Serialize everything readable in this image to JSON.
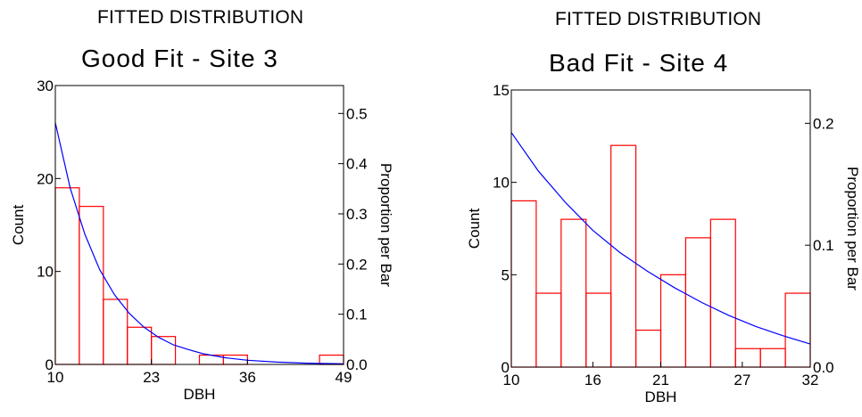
{
  "chart_data": [
    {
      "type": "bar",
      "subtitle": "FITTED DISTRIBUTION",
      "title": "Good Fit - Site 3",
      "xlabel": "DBH",
      "ylabel": "Count",
      "y2label": "Proportion per Bar",
      "xlim": [
        10,
        49
      ],
      "ylim": [
        0,
        30
      ],
      "y2lim": [
        0,
        0.5556
      ],
      "x_ticks": [
        "10",
        "23",
        "36",
        "49"
      ],
      "y_ticks": [
        "0",
        "10",
        "20",
        "30"
      ],
      "y2_ticks": [
        "0.0",
        "0.1",
        "0.2",
        "0.3",
        "0.4",
        "0.5"
      ],
      "bin_edges": [
        10,
        13.25,
        16.5,
        19.75,
        23,
        26.25,
        29.5,
        32.75,
        36,
        39.25,
        42.5,
        45.75,
        49
      ],
      "values": [
        19,
        17,
        7,
        4,
        3,
        0,
        1,
        1,
        0,
        0,
        0,
        1
      ],
      "fitted_curve": {
        "x": [
          10,
          12,
          14,
          16,
          18,
          20,
          22,
          24,
          26,
          28,
          30,
          33,
          36,
          40,
          44,
          49
        ],
        "y": [
          26.0,
          19.0,
          14.0,
          10.2,
          7.5,
          5.5,
          4.0,
          2.9,
          2.1,
          1.6,
          1.15,
          0.72,
          0.45,
          0.25,
          0.13,
          0.07
        ]
      },
      "bar_color": "#ff0000",
      "curve_color": "#0000ff"
    },
    {
      "type": "bar",
      "subtitle": "FITTED DISTRIBUTION",
      "title": "Bad Fit - Site 4",
      "xlabel": "DBH",
      "ylabel": "Count",
      "y2label": "Proportion per Bar",
      "xlim": [
        10,
        32
      ],
      "ylim": [
        0,
        15
      ],
      "y2lim": [
        0,
        0.2273
      ],
      "x_ticks": [
        "10",
        "16",
        "21",
        "27",
        "32"
      ],
      "y_ticks": [
        "0",
        "5",
        "10",
        "15"
      ],
      "y2_ticks": [
        "0.0",
        "0.1",
        "0.2"
      ],
      "bin_edges": [
        10,
        11.833,
        13.667,
        15.5,
        17.333,
        19.167,
        21,
        22.833,
        24.667,
        26.5,
        28.333,
        30.167,
        32
      ],
      "values": [
        9,
        4,
        8,
        4,
        12,
        2,
        5,
        7,
        8,
        1,
        1,
        4
      ],
      "fitted_curve": {
        "x": [
          10,
          12,
          14,
          16,
          18,
          20,
          22,
          24,
          26,
          28,
          30,
          32
        ],
        "y": [
          12.7,
          10.6,
          8.9,
          7.4,
          6.2,
          5.2,
          4.3,
          3.5,
          2.8,
          2.2,
          1.7,
          1.25
        ]
      },
      "bar_color": "#ff0000",
      "curve_color": "#0000ff"
    }
  ]
}
